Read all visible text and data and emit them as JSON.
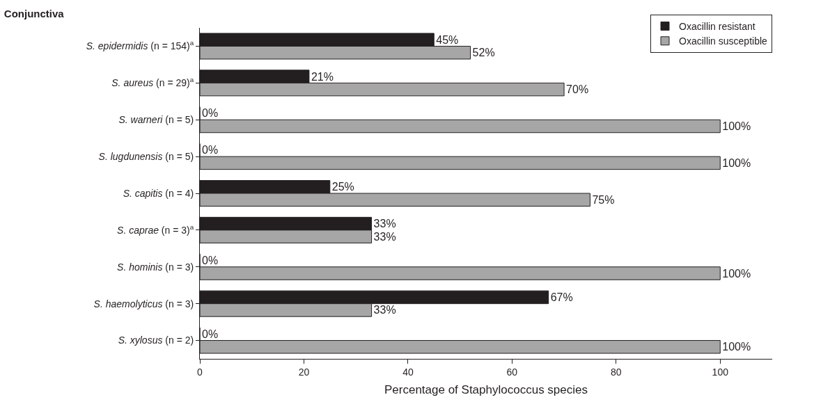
{
  "chart_data": {
    "type": "bar",
    "orientation": "horizontal",
    "title": "Conjunctiva",
    "xlabel": "Percentage of Staphylococcus species",
    "categories": [
      "S. epidermidis (n = 154)$^{a}$",
      "S. aureus (n = 29)$^{a}$",
      "S. warneri (n = 5)",
      "S. lugdunensis (n = 5)",
      "S. capitis (n = 4)",
      "S. caprae (n = 3)$^{a}$",
      "S. hominis (n = 3)",
      "S. haemolyticus (n = 3)",
      "S. xylosus (n = 2)"
    ],
    "series": [
      {
        "name": "Oxacillin resistant",
        "color": "#231f20",
        "values": [
          45,
          21,
          0,
          0,
          25,
          33,
          0,
          67,
          0
        ],
        "value_labels": [
          "45%",
          "21%",
          "0%",
          "0%",
          "25%",
          "33%",
          "0%",
          "67%",
          "0%"
        ]
      },
      {
        "name": "Oxacillin susceptible",
        "color": "#a6a6a6",
        "values": [
          52,
          70,
          100,
          100,
          75,
          33,
          100,
          33,
          100
        ],
        "value_labels": [
          "52%",
          "70%",
          "100%",
          "100%",
          "75%",
          "33%",
          "100%",
          "33%",
          "100%"
        ]
      }
    ],
    "xlim": [
      0,
      110
    ],
    "xticks": [
      0,
      20,
      40,
      60,
      80,
      100
    ],
    "grid": false,
    "legend": "top right"
  }
}
